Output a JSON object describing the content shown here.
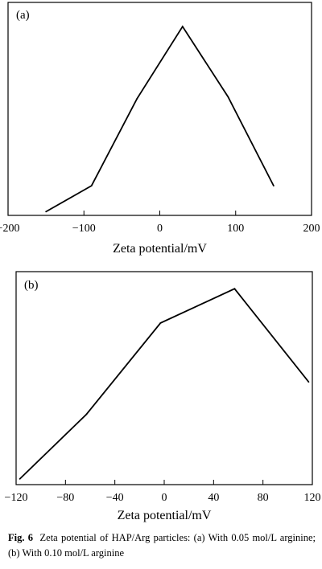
{
  "chart_data": [
    {
      "type": "line",
      "panel_label": "(a)",
      "xlabel": "Zeta potential/mV",
      "xlim": [
        -200,
        200
      ],
      "xticks": [
        -200,
        -100,
        0,
        100,
        200
      ],
      "x": [
        -150,
        -90,
        -30,
        30,
        90,
        150
      ],
      "y": [
        0.0,
        0.14,
        0.61,
        1.0,
        0.62,
        0.14
      ],
      "ylim": [
        -0.02,
        1.13
      ],
      "yticks": [],
      "grid": false
    },
    {
      "type": "line",
      "panel_label": "(b)",
      "xlabel": "Zeta potential/mV",
      "xlim": [
        -120,
        120
      ],
      "xticks": [
        -120,
        -80,
        -40,
        0,
        40,
        80,
        120
      ],
      "x": [
        -117,
        -63,
        -3,
        57,
        117
      ],
      "y": [
        0.0,
        0.34,
        0.82,
        1.0,
        0.51
      ],
      "ylim": [
        -0.03,
        1.09
      ],
      "yticks": [],
      "grid": false
    }
  ],
  "caption": {
    "fig_label": "Fig. 6",
    "text": "Zeta potential of HAP/Arg particles: (a) With 0.05 mol/L arginine; (b) With 0.10 mol/L arginine"
  }
}
